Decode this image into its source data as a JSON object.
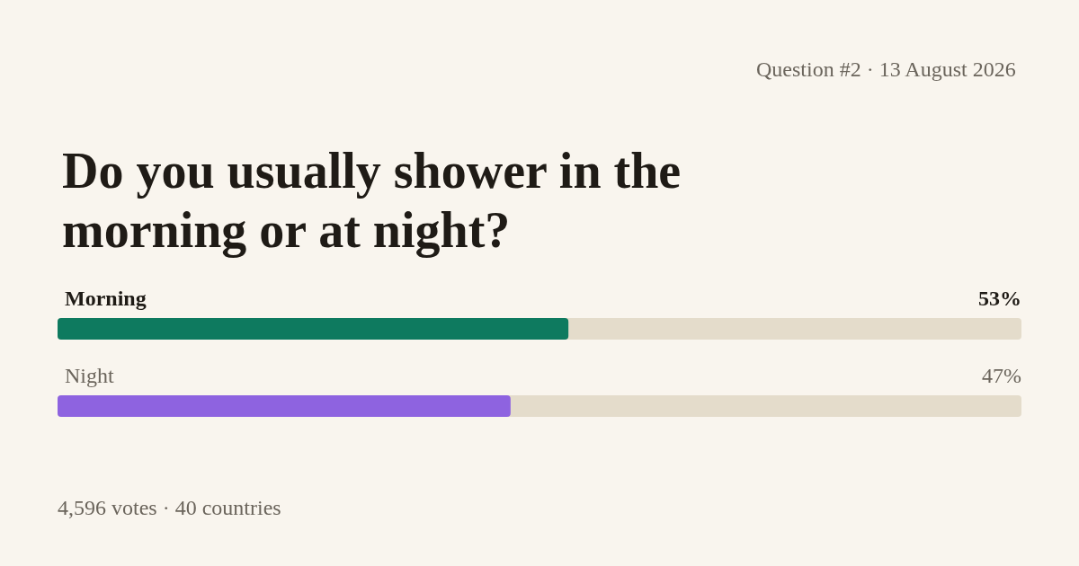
{
  "chart_data": {
    "type": "bar",
    "orientation": "horizontal",
    "title": "Do you usually shower in the morning or at night?",
    "subtitle": "Question #2 · 13 August 2026",
    "categories": [
      "Morning",
      "Night"
    ],
    "values": [
      53,
      47
    ],
    "colors": [
      "#0e7a5f",
      "#8e63e0"
    ],
    "value_labels": [
      "53%",
      "47%"
    ],
    "xlim": [
      0,
      100
    ],
    "tick_labels": false,
    "annotations": [
      "4,596 votes · 40 countries"
    ]
  }
}
